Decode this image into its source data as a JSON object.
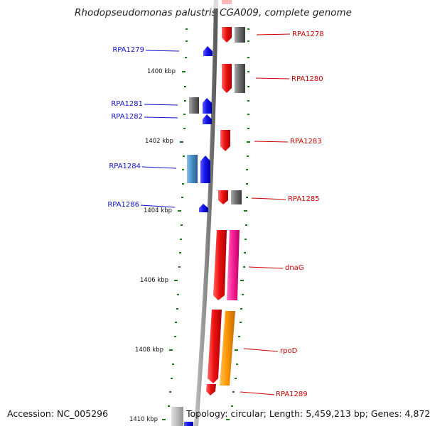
{
  "title": "Rhodopseudomonas palustris CGA009, complete genome",
  "footer": {
    "accession": "Accession: NC_005296",
    "topology": "Topology: circular; Length: 5,459,213 bp; Genes: 4,872"
  },
  "colors": {
    "backbone": "#8a8a8a",
    "red": "#ee1111",
    "gray": "#707070",
    "blue": "#1515ee",
    "steelblue": "#4a90c8",
    "magenta": "#ff2299",
    "orange": "#ff9900",
    "tick": "#1a7a1a",
    "label_left": "#1010cc",
    "label_right": "#cc0000"
  },
  "kbp_labels": [
    "1400 kbp",
    "1402 kbp",
    "1404 kbp",
    "1406 kbp",
    "1408 kbp",
    "1410 kbp"
  ],
  "gene_labels_left": [
    "RPA1279",
    "RPA1281",
    "RPA1282",
    "RPA1284",
    "RPA1286"
  ],
  "gene_labels_right": [
    "RPA1278",
    "RPA1280",
    "RPA1283",
    "RPA1285",
    "dnaG",
    "rpoD",
    "RPA1289"
  ]
}
